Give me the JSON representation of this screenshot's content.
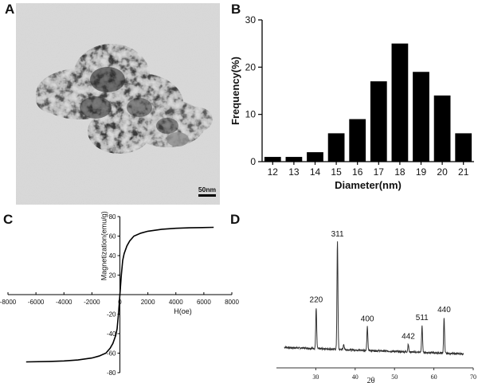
{
  "panels": {
    "a": {
      "letter": "A",
      "scale_bar_label": "50nm"
    },
    "b": {
      "letter": "B"
    },
    "c": {
      "letter": "C"
    },
    "d": {
      "letter": "D"
    }
  },
  "chart_data": [
    {
      "panel": "B",
      "type": "bar",
      "categories": [
        "12",
        "13",
        "14",
        "15",
        "16",
        "17",
        "18",
        "19",
        "20",
        "21"
      ],
      "values": [
        1,
        1,
        2,
        6,
        9,
        17,
        25,
        19,
        14,
        6
      ],
      "xlabel": "Diameter(nm)",
      "ylabel": "Frequency(%)",
      "ylim": [
        0,
        30
      ],
      "yticks": [
        0,
        10,
        20,
        30
      ],
      "bar_color": "#000000",
      "grid": false
    },
    {
      "panel": "C",
      "type": "line",
      "xlabel": "H(oe)",
      "ylabel": "Magnetization(emu/g)",
      "xlim": [
        -8000,
        8000
      ],
      "ylim": [
        -80,
        80
      ],
      "xticks": [
        -8000,
        -6000,
        -4000,
        -2000,
        0,
        2000,
        4000,
        6000,
        8000
      ],
      "yticks": [
        -80,
        -60,
        -40,
        -20,
        20,
        40,
        60,
        80
      ],
      "series": [
        {
          "x": [
            -6700,
            -5000,
            -4000,
            -3000,
            -2000,
            -1500,
            -1000,
            -700,
            -500,
            -300,
            -200,
            -100,
            -50,
            0,
            50,
            100,
            200,
            300,
            500,
            700,
            1000,
            1500,
            2000,
            3000,
            4000,
            5000,
            6700
          ],
          "values": [
            -69,
            -68.5,
            -68,
            -67,
            -65,
            -63,
            -60,
            -55,
            -50,
            -42,
            -35,
            -20,
            -10,
            0,
            10,
            20,
            35,
            42,
            50,
            55,
            60,
            63,
            65,
            67,
            68,
            68.5,
            69
          ]
        }
      ],
      "line_color": "#000000",
      "grid": false
    },
    {
      "panel": "D",
      "type": "line",
      "xlabel": "2θ",
      "xlim": [
        20,
        70
      ],
      "xticks": [
        30,
        40,
        50,
        60,
        70
      ],
      "peak_labels": [
        {
          "x": 30.1,
          "label": "220"
        },
        {
          "x": 35.5,
          "label": "311"
        },
        {
          "x": 43.1,
          "label": "400"
        },
        {
          "x": 53.5,
          "label": "442"
        },
        {
          "x": 57.0,
          "label": "511"
        },
        {
          "x": 62.6,
          "label": "440"
        }
      ],
      "peaks": [
        {
          "x": 30.1,
          "height": 38
        },
        {
          "x": 35.5,
          "height": 100
        },
        {
          "x": 37.1,
          "height": 5
        },
        {
          "x": 43.1,
          "height": 22
        },
        {
          "x": 53.5,
          "height": 7
        },
        {
          "x": 57.0,
          "height": 25
        },
        {
          "x": 62.6,
          "height": 33
        }
      ],
      "line_color": "#333333",
      "grid": false
    }
  ]
}
